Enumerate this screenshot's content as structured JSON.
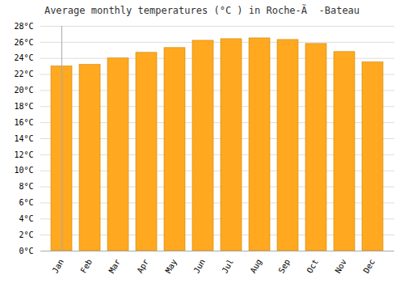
{
  "chart_data": {
    "type": "bar",
    "title": "Average monthly temperatures (°C ) in Roche-Ã  -Bateau",
    "categories": [
      "Jan",
      "Feb",
      "Mar",
      "Apr",
      "May",
      "Jun",
      "Jul",
      "Aug",
      "Sep",
      "Oct",
      "Nov",
      "Dec"
    ],
    "values": [
      23.0,
      23.2,
      24.0,
      24.7,
      25.3,
      26.2,
      26.4,
      26.5,
      26.3,
      25.8,
      24.8,
      23.5
    ],
    "color": "#FFA820",
    "ylim": [
      0,
      28
    ],
    "yticks": [
      {
        "value": 0,
        "label": "0°C"
      },
      {
        "value": 2,
        "label": "2°C"
      },
      {
        "value": 4,
        "label": "4°C"
      },
      {
        "value": 6,
        "label": "6°C"
      },
      {
        "value": 8,
        "label": "8°C"
      },
      {
        "value": 10,
        "label": "10°C"
      },
      {
        "value": 12,
        "label": "12°C"
      },
      {
        "value": 14,
        "label": "14°C"
      },
      {
        "value": 16,
        "label": "16°C"
      },
      {
        "value": 18,
        "label": "18°C"
      },
      {
        "value": 20,
        "label": "20°C"
      },
      {
        "value": 22,
        "label": "22°C"
      },
      {
        "value": 24,
        "label": "24°C"
      },
      {
        "value": 26,
        "label": "26°C"
      },
      {
        "value": 28,
        "label": "28°C"
      }
    ],
    "grid": true
  }
}
